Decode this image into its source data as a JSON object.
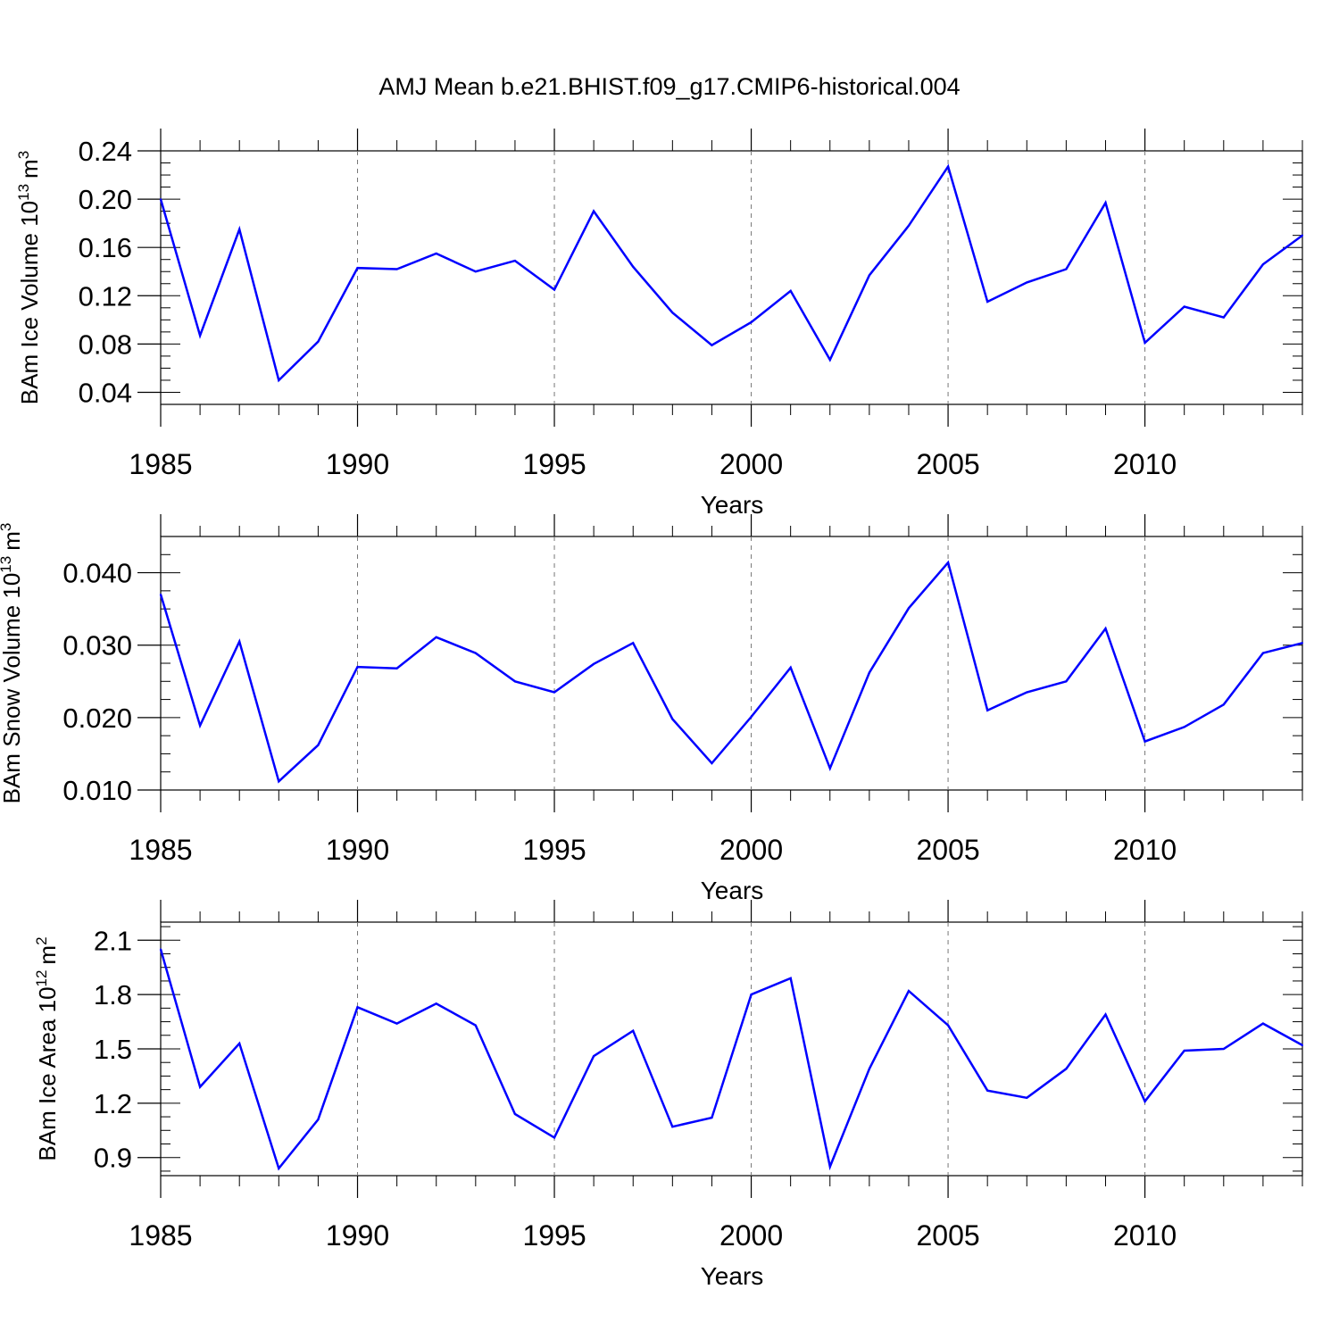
{
  "title": "AMJ Mean b.e21.BHIST.f09_g17.CMIP6-historical.004",
  "line_color": "#0000ff",
  "chart_data": [
    {
      "type": "line",
      "ylabel_text": "BAm Ice Volume 10",
      "ylabel_sup": "13",
      "ylabel_unit": "m",
      "ylabel_unit_sup": "3",
      "xlabel": "Years",
      "xlim": [
        1985,
        2014
      ],
      "ylim": [
        0.03,
        0.24
      ],
      "xticks": [
        "1985",
        "1990",
        "1995",
        "2000",
        "2005",
        "2010"
      ],
      "yticks": [
        "0.04",
        "0.08",
        "0.12",
        "0.16",
        "0.20",
        "0.24"
      ],
      "x": [
        1985,
        1986,
        1987,
        1988,
        1989,
        1990,
        1991,
        1992,
        1993,
        1994,
        1995,
        1996,
        1997,
        1998,
        1999,
        2000,
        2001,
        2002,
        2003,
        2004,
        2005,
        2006,
        2007,
        2008,
        2009,
        2010,
        2011,
        2012,
        2013,
        2014
      ],
      "values": [
        0.2,
        0.087,
        0.175,
        0.05,
        0.082,
        0.143,
        0.142,
        0.155,
        0.14,
        0.149,
        0.125,
        0.19,
        0.144,
        0.106,
        0.079,
        0.098,
        0.124,
        0.067,
        0.137,
        0.178,
        0.227,
        0.115,
        0.131,
        0.142,
        0.197,
        0.081,
        0.111,
        0.102,
        0.146,
        0.17
      ]
    },
    {
      "type": "line",
      "ylabel_text": "BAm Snow Volume 10",
      "ylabel_sup": "13",
      "ylabel_unit": "m",
      "ylabel_unit_sup": "3",
      "xlabel": "Years",
      "xlim": [
        1985,
        2014
      ],
      "ylim": [
        0.01,
        0.045
      ],
      "xticks": [
        "1985",
        "1990",
        "1995",
        "2000",
        "2005",
        "2010"
      ],
      "yticks": [
        "0.010",
        "0.020",
        "0.030",
        "0.040"
      ],
      "x": [
        1985,
        1986,
        1987,
        1988,
        1989,
        1990,
        1991,
        1992,
        1993,
        1994,
        1995,
        1996,
        1997,
        1998,
        1999,
        2000,
        2001,
        2002,
        2003,
        2004,
        2005,
        2006,
        2007,
        2008,
        2009,
        2010,
        2011,
        2012,
        2013,
        2014
      ],
      "values": [
        0.037,
        0.0189,
        0.0305,
        0.0112,
        0.0162,
        0.027,
        0.0268,
        0.0311,
        0.0289,
        0.025,
        0.0235,
        0.0274,
        0.0303,
        0.0198,
        0.0137,
        0.0201,
        0.0269,
        0.013,
        0.0262,
        0.0351,
        0.0414,
        0.021,
        0.0235,
        0.025,
        0.0323,
        0.0167,
        0.0187,
        0.0218,
        0.0289,
        0.0303
      ]
    },
    {
      "type": "line",
      "ylabel_text": "BAm Ice Area 10",
      "ylabel_sup": "12",
      "ylabel_unit": "m",
      "ylabel_unit_sup": "2",
      "xlabel": "Years",
      "xlim": [
        1985,
        2014
      ],
      "ylim": [
        0.8,
        2.2
      ],
      "xticks": [
        "1985",
        "1990",
        "1995",
        "2000",
        "2005",
        "2010"
      ],
      "yticks": [
        "0.9",
        "1.2",
        "1.5",
        "1.8",
        "2.1"
      ],
      "x": [
        1985,
        1986,
        1987,
        1988,
        1989,
        1990,
        1991,
        1992,
        1993,
        1994,
        1995,
        1996,
        1997,
        1998,
        1999,
        2000,
        2001,
        2002,
        2003,
        2004,
        2005,
        2006,
        2007,
        2008,
        2009,
        2010,
        2011,
        2012,
        2013,
        2014
      ],
      "values": [
        2.05,
        1.29,
        1.53,
        0.84,
        1.11,
        1.73,
        1.64,
        1.75,
        1.63,
        1.14,
        1.01,
        1.46,
        1.6,
        1.07,
        1.12,
        1.8,
        1.89,
        0.85,
        1.39,
        1.82,
        1.63,
        1.27,
        1.23,
        1.39,
        1.69,
        1.21,
        1.49,
        1.5,
        1.64,
        1.52
      ]
    }
  ]
}
